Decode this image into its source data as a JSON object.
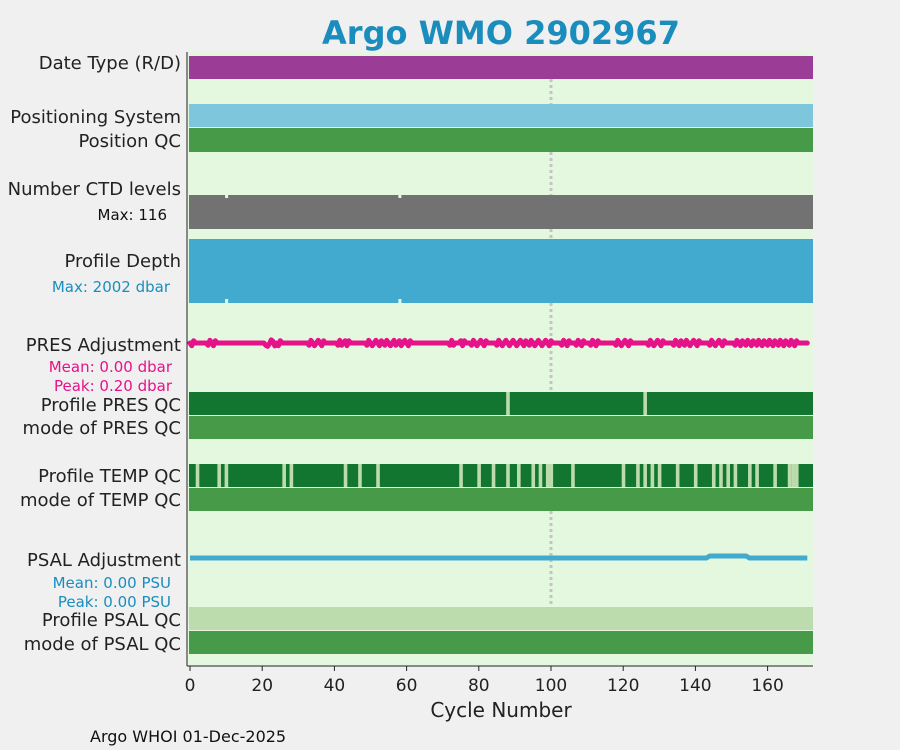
{
  "chart_data": {
    "type": "bar",
    "title": "Argo WMO 2902967",
    "xlabel": "Cycle Number",
    "xlim": [
      -0.5,
      171.5
    ],
    "xticks": [
      0,
      20,
      40,
      60,
      80,
      100,
      120,
      140,
      160
    ],
    "reference_cycle": 100,
    "footer": "Argo WHOI 01-Dec-2025",
    "colors": {
      "date_type": "#9b3d97",
      "positioning": "#7ec6dc",
      "position_qc": "#479a47",
      "ctd": "#727272",
      "depth": "#42aacf",
      "pres_adj": "#e6128a",
      "qc_dark": "#127530",
      "qc_good": "#479a47",
      "qc_light": "#bcdcae",
      "psal_adj": "#42aacf",
      "panel_bg": "#e4f8df",
      "title": "#1a8dbd",
      "stats_blue": "#1a8dbd",
      "stats_pink": "#e6128a"
    },
    "rows": {
      "date_type": {
        "label": "Date Type (R/D)"
      },
      "positioning": {
        "label": "Positioning System"
      },
      "position_qc": {
        "label": "Position QC"
      },
      "ctd": {
        "label": "Number CTD levels",
        "max_text": "Max: 116",
        "max": 116,
        "dips": [
          10,
          58
        ]
      },
      "depth": {
        "label": "Profile Depth",
        "max_text": "Max: 2002 dbar",
        "max": 2002,
        "dips": [
          10,
          58
        ]
      },
      "pres_adj": {
        "label": "PRES Adjustment",
        "mean_text": "Mean: 0.00 dbar",
        "peak_text": "Peak: 0.20 dbar"
      },
      "pres_qc": {
        "label": "Profile PRES QC",
        "light_cycles": [
          88,
          126
        ]
      },
      "pres_mode": {
        "label": "mode of PRES QC"
      },
      "temp_qc": {
        "label": "Profile TEMP QC",
        "light_cycles": [
          2,
          8,
          10,
          26,
          28,
          43,
          47,
          52,
          75,
          80,
          84,
          88,
          91,
          95,
          97,
          99,
          100,
          106,
          120,
          124,
          126,
          128,
          130,
          135,
          140,
          145,
          147,
          149,
          151,
          155,
          157,
          162,
          166,
          167,
          168
        ]
      },
      "temp_mode": {
        "label": "mode of TEMP QC"
      },
      "psal_adj": {
        "label": "PSAL Adjustment",
        "mean_text": "Mean: 0.00 PSU",
        "peak_text": "Peak: 0.00 PSU"
      },
      "psal_qc": {
        "label": "Profile PSAL QC"
      },
      "psal_mode": {
        "label": "mode of PSAL QC"
      }
    }
  }
}
